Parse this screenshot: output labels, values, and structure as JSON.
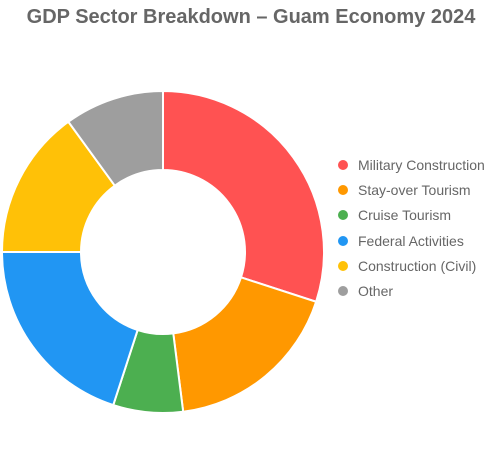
{
  "chart_data": {
    "type": "pie",
    "variant": "donut",
    "title": "GDP Sector Breakdown – Guam Economy 2024",
    "legend_position": "right",
    "categories": [
      "Military Construction",
      "Stay-over Tourism",
      "Cruise Tourism",
      "Federal Activities",
      "Construction (Civil)",
      "Other"
    ],
    "values": [
      30,
      18,
      7,
      20,
      15,
      10
    ],
    "colors": [
      "#ff5252",
      "#ff9800",
      "#4caf50",
      "#2196f3",
      "#ffc107",
      "#9e9e9e"
    ]
  }
}
